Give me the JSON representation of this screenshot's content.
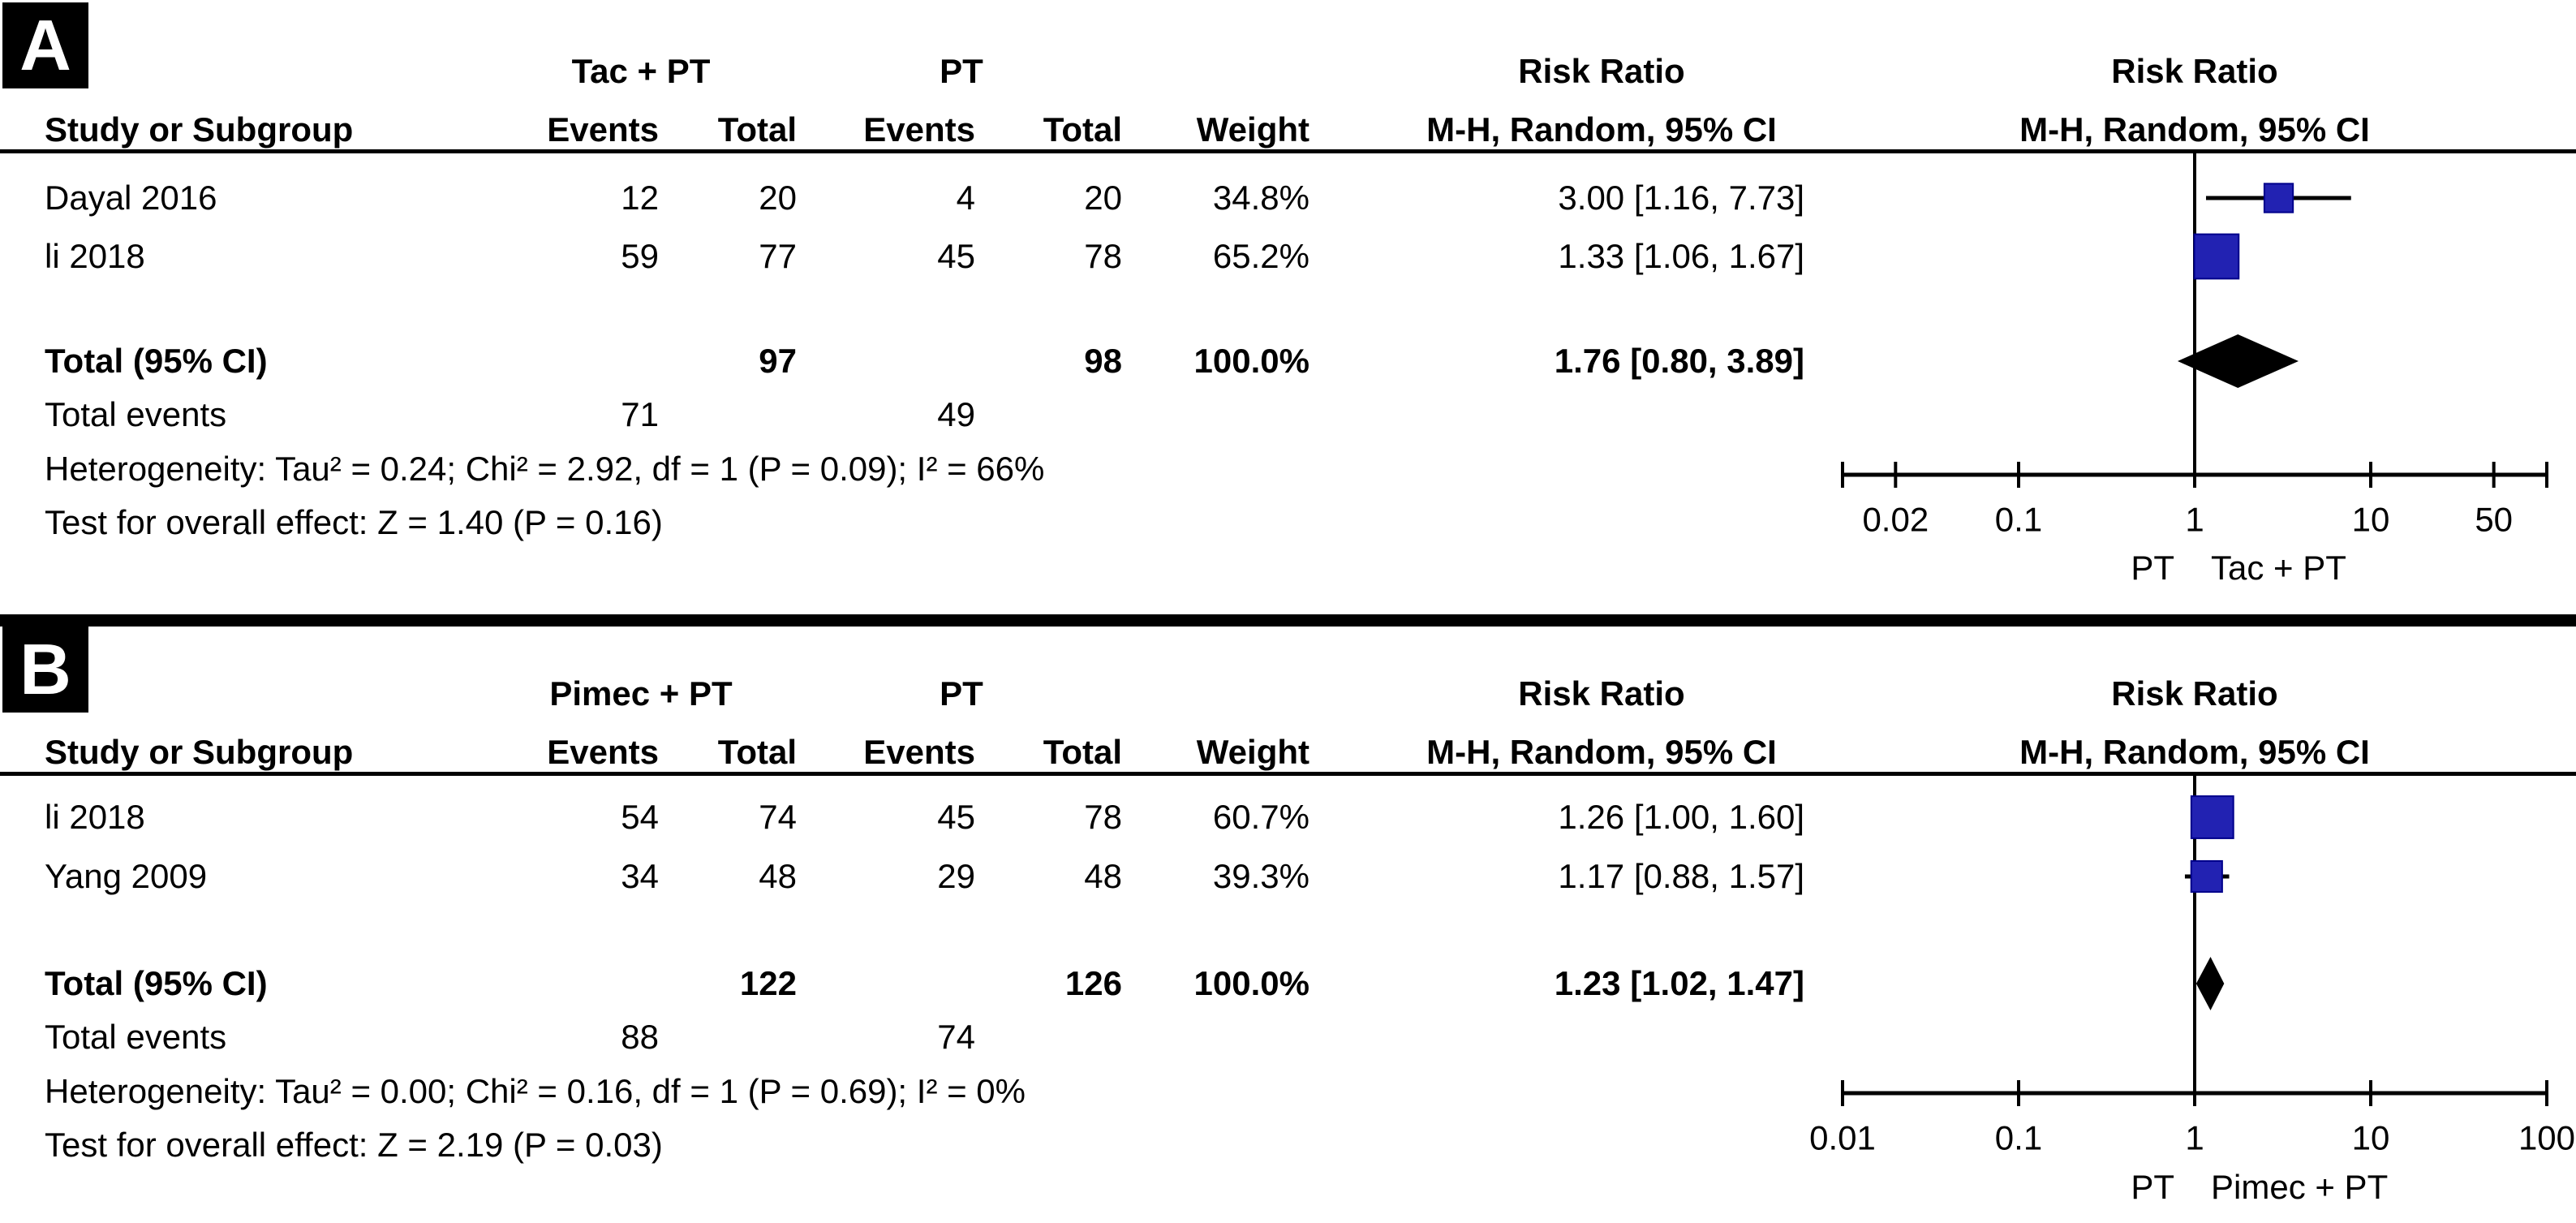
{
  "headers": {
    "study": "Study or Subgroup",
    "events": "Events",
    "total": "Total",
    "weight": "Weight",
    "risk_ratio": "Risk Ratio",
    "mh": "M-H, Random, 95% CI"
  },
  "colors": {
    "square": "#2222B2",
    "square_border": "#00008B",
    "diamond": "#000000",
    "line": "#000000"
  },
  "chart_data": [
    {
      "type": "forest",
      "panel_label": "A",
      "effect_measure": "Risk Ratio",
      "method": "M-H, Random, 95% CI",
      "groups": {
        "experimental": "Tac + PT",
        "control": "PT"
      },
      "studies": [
        {
          "name": "Dayal 2016",
          "exp_events": 12,
          "exp_total": 20,
          "ctrl_events": 4,
          "ctrl_total": 20,
          "weight": "34.8%",
          "weight_pct": 34.8,
          "rr": 3.0,
          "ci_low": 1.16,
          "ci_high": 7.73,
          "rr_text": "3.00 [1.16, 7.73]"
        },
        {
          "name": "li 2018",
          "exp_events": 59,
          "exp_total": 77,
          "ctrl_events": 45,
          "ctrl_total": 78,
          "weight": "65.2%",
          "weight_pct": 65.2,
          "rr": 1.33,
          "ci_low": 1.06,
          "ci_high": 1.67,
          "rr_text": "1.33 [1.06, 1.67]"
        }
      ],
      "total": {
        "label": "Total (95% CI)",
        "exp_total": 97,
        "ctrl_total": 98,
        "weight": "100.0%",
        "rr": 1.76,
        "ci_low": 0.8,
        "ci_high": 3.89,
        "rr_text": "1.76 [0.80, 3.89]"
      },
      "total_events": {
        "label": "Total events",
        "exp": 71,
        "ctrl": 49
      },
      "heterogeneity": "Heterogeneity: Tau² = 0.24; Chi² = 2.92, df = 1 (P = 0.09); I² = 66%",
      "overall_effect": "Test for overall effect: Z = 1.40 (P = 0.16)",
      "axis": {
        "scale": "log",
        "range": [
          0.01,
          100
        ],
        "ticks": [
          {
            "v": 0.02,
            "label": "0.02"
          },
          {
            "v": 0.1,
            "label": "0.1"
          },
          {
            "v": 1,
            "label": "1"
          },
          {
            "v": 10,
            "label": "10"
          },
          {
            "v": 50,
            "label": "50"
          }
        ],
        "left_label": "PT",
        "right_label": "Tac + PT"
      }
    },
    {
      "type": "forest",
      "panel_label": "B",
      "effect_measure": "Risk Ratio",
      "method": "M-H, Random, 95% CI",
      "groups": {
        "experimental": "Pimec + PT",
        "control": "PT"
      },
      "studies": [
        {
          "name": "li 2018",
          "exp_events": 54,
          "exp_total": 74,
          "ctrl_events": 45,
          "ctrl_total": 78,
          "weight": "60.7%",
          "weight_pct": 60.7,
          "rr": 1.26,
          "ci_low": 1.0,
          "ci_high": 1.6,
          "rr_text": "1.26 [1.00, 1.60]"
        },
        {
          "name": "Yang 2009",
          "exp_events": 34,
          "exp_total": 48,
          "ctrl_events": 29,
          "ctrl_total": 48,
          "weight": "39.3%",
          "weight_pct": 39.3,
          "rr": 1.17,
          "ci_low": 0.88,
          "ci_high": 1.57,
          "rr_text": "1.17 [0.88, 1.57]"
        }
      ],
      "total": {
        "label": "Total (95% CI)",
        "exp_total": 122,
        "ctrl_total": 126,
        "weight": "100.0%",
        "rr": 1.23,
        "ci_low": 1.02,
        "ci_high": 1.47,
        "rr_text": "1.23 [1.02, 1.47]"
      },
      "total_events": {
        "label": "Total events",
        "exp": 88,
        "ctrl": 74
      },
      "heterogeneity": "Heterogeneity: Tau² = 0.00; Chi² = 0.16, df = 1 (P = 0.69); I² = 0%",
      "overall_effect": "Test for overall effect: Z = 2.19 (P = 0.03)",
      "axis": {
        "scale": "log",
        "range": [
          0.01,
          100
        ],
        "ticks": [
          {
            "v": 0.01,
            "label": "0.01"
          },
          {
            "v": 0.1,
            "label": "0.1"
          },
          {
            "v": 1,
            "label": "1"
          },
          {
            "v": 10,
            "label": "10"
          },
          {
            "v": 100,
            "label": "100"
          }
        ],
        "left_label": "PT",
        "right_label": "Pimec + PT"
      }
    }
  ]
}
